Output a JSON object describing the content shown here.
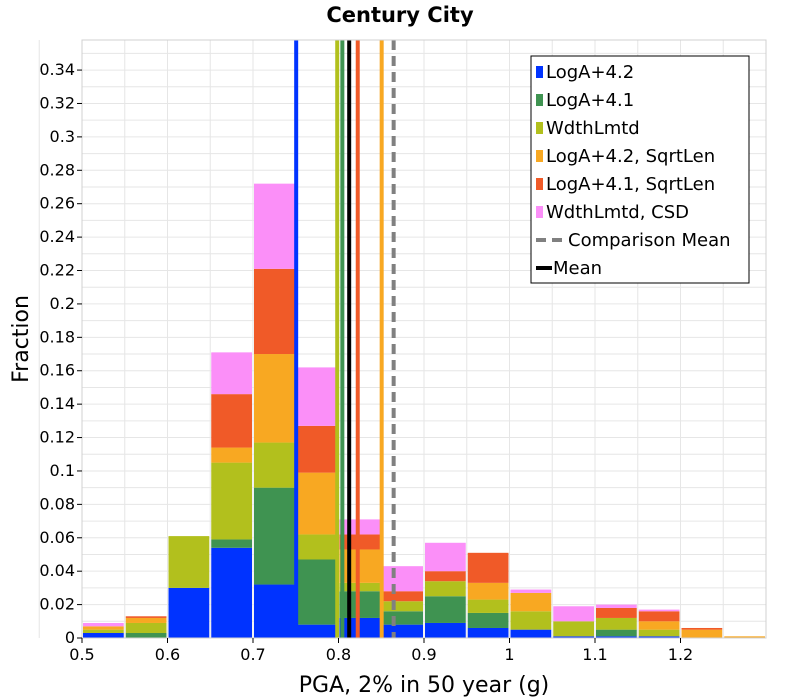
{
  "chart_data": {
    "type": "bar",
    "stacked": true,
    "title": "Century City",
    "xlabel": "PGA, 2% in 50 year (g)",
    "ylabel": "Fraction",
    "xlim": [
      0.5,
      1.3
    ],
    "ylim": [
      0,
      0.358
    ],
    "bin_width": 0.05,
    "x_ticks": [
      0.5,
      0.6,
      0.7,
      0.8,
      0.9,
      1.0,
      1.1,
      1.2
    ],
    "x_tick_labels": [
      "0.5",
      "0.6",
      "0.7",
      "0.8",
      "0.9",
      "1",
      "1.1",
      "1.2"
    ],
    "y_ticks": [
      0,
      0.02,
      0.04,
      0.06,
      0.08,
      0.1,
      0.12,
      0.14,
      0.16,
      0.18,
      0.2,
      0.22,
      0.24,
      0.26,
      0.28,
      0.3,
      0.32,
      0.34
    ],
    "y_tick_labels": [
      "0",
      "0.02",
      "0.04",
      "0.06",
      "0.08",
      "0.1",
      "0.12",
      "0.14",
      "0.16",
      "0.18",
      "0.2",
      "0.22",
      "0.24",
      "0.26",
      "0.28",
      "0.3",
      "0.32",
      "0.34"
    ],
    "bin_starts": [
      0.5,
      0.55,
      0.6,
      0.65,
      0.7,
      0.75,
      0.8,
      0.85,
      0.9,
      0.95,
      1.0,
      1.05,
      1.1,
      1.15,
      1.2,
      1.25
    ],
    "series": [
      {
        "name": "LogA+4.2",
        "color": "#0033ff",
        "values": [
          0.003,
          0.0,
          0.03,
          0.054,
          0.032,
          0.008,
          0.012,
          0.008,
          0.009,
          0.006,
          0.005,
          0.001,
          0.001,
          0.001,
          0.0,
          0.0
        ]
      },
      {
        "name": "LogA+4.1",
        "color": "#3f9351",
        "values": [
          0.0,
          0.003,
          0.0,
          0.005,
          0.058,
          0.039,
          0.016,
          0.008,
          0.016,
          0.009,
          0.0,
          0.0,
          0.004,
          0.0,
          0.0,
          0.0
        ]
      },
      {
        "name": "WdthLmtd",
        "color": "#b2c01d",
        "values": [
          0.002,
          0.006,
          0.031,
          0.046,
          0.027,
          0.015,
          0.005,
          0.006,
          0.009,
          0.008,
          0.011,
          0.009,
          0.007,
          0.004,
          0.0,
          0.0
        ]
      },
      {
        "name": "LogA+4.2, SqrtLen",
        "color": "#f8a822",
        "values": [
          0.002,
          0.003,
          0.0,
          0.009,
          0.053,
          0.037,
          0.02,
          0.0,
          0.0,
          0.01,
          0.011,
          0.0,
          0.0,
          0.005,
          0.005,
          0.001
        ]
      },
      {
        "name": "LogA+4.1, SqrtLen",
        "color": "#f05a28",
        "values": [
          0.0,
          0.001,
          0.0,
          0.032,
          0.051,
          0.028,
          0.009,
          0.006,
          0.006,
          0.018,
          0.0,
          0.0,
          0.006,
          0.006,
          0.001,
          0.0
        ]
      },
      {
        "name": "WdthLmtd, CSD",
        "color": "#fb8ff8",
        "values": [
          0.002,
          0.0,
          0.0,
          0.025,
          0.051,
          0.035,
          0.009,
          0.015,
          0.017,
          0.0,
          0.002,
          0.009,
          0.002,
          0.001,
          0.0,
          0.0
        ]
      }
    ],
    "vertical_lines": [
      {
        "series": "LogA+4.2",
        "x": 0.7505,
        "color": "#0033ff",
        "style": "solid"
      },
      {
        "series": "WdthLmtd",
        "x": 0.7985,
        "color": "#b2c01d",
        "style": "solid"
      },
      {
        "series": "LogA+4.1",
        "x": 0.8045,
        "color": "#3f9351",
        "style": "solid"
      },
      {
        "series": "Mean",
        "x": 0.8125,
        "color": "#000000",
        "style": "solid"
      },
      {
        "series": "LogA+4.1, SqrtLen",
        "x": 0.8225,
        "color": "#f05a28",
        "style": "solid"
      },
      {
        "series": "LogA+4.2, SqrtLen",
        "x": 0.8505,
        "color": "#f8a822",
        "style": "solid"
      },
      {
        "series": "Comparison Mean",
        "x": 0.8645,
        "color": "#808080",
        "style": "dashed"
      }
    ],
    "legend": {
      "position": "top-right",
      "entries": [
        {
          "label": "LogA+4.2",
          "color": "#0033ff",
          "kind": "bar"
        },
        {
          "label": "LogA+4.1",
          "color": "#3f9351",
          "kind": "bar"
        },
        {
          "label": "WdthLmtd",
          "color": "#b2c01d",
          "kind": "bar"
        },
        {
          "label": "LogA+4.2, SqrtLen",
          "color": "#f8a822",
          "kind": "bar"
        },
        {
          "label": "LogA+4.1, SqrtLen",
          "color": "#f05a28",
          "kind": "bar"
        },
        {
          "label": "WdthLmtd, CSD",
          "color": "#fb8ff8",
          "kind": "bar"
        },
        {
          "label": "Comparison Mean",
          "color": "#808080",
          "kind": "dashed"
        },
        {
          "label": "Mean",
          "color": "#000000",
          "kind": "line"
        }
      ]
    },
    "grid": true
  }
}
